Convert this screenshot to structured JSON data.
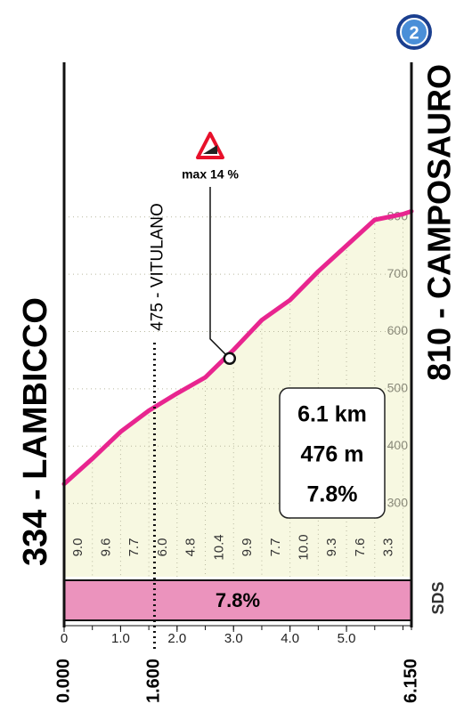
{
  "chart_data": {
    "type": "area",
    "x": [
      0,
      0.5,
      1,
      1.5,
      2,
      2.5,
      3,
      3.5,
      4,
      4.5,
      5,
      5.5,
      6,
      6.15
    ],
    "values": [
      334,
      378,
      425,
      462,
      492,
      520,
      568,
      620,
      655,
      705,
      750,
      795,
      805,
      810
    ],
    "xlim": [
      0,
      6.15
    ],
    "ylim": [
      172,
      1070
    ],
    "xticks": [
      0,
      {
        "value": 1,
        "label": "1.0"
      },
      {
        "value": 2,
        "label": "2.0"
      },
      {
        "value": 3,
        "label": "3.0"
      },
      {
        "value": 4,
        "label": "4.0"
      },
      {
        "value": 5,
        "label": "5.0"
      }
    ],
    "yticks": [
      300,
      400,
      500,
      600,
      700,
      800
    ],
    "color": "#e8258f",
    "fill": "#f7f8e1",
    "gradients": [
      "9.0",
      "9.6",
      "7.7",
      "6.0",
      "4.8",
      "10.4",
      "9.9",
      "7.7",
      "10.0",
      "9.3",
      "7.6",
      "3.3"
    ],
    "average": "7.8%",
    "start": {
      "name": "334 - LAMBICCO",
      "value": 0,
      "label": "0.000"
    },
    "waypoint": {
      "name": "475 - VITULANO",
      "value": 1.6,
      "label": "1.600"
    },
    "finish": {
      "name": "810 - CAMPOSAURO",
      "value": 6.15,
      "label": "6.150"
    },
    "annotation": {
      "label": "max 14 %",
      "x": 2.93,
      "y": 553
    },
    "summary": [
      "6.1 km",
      "476 m",
      "7.8%"
    ],
    "badge": "2",
    "logo": "SDS"
  }
}
